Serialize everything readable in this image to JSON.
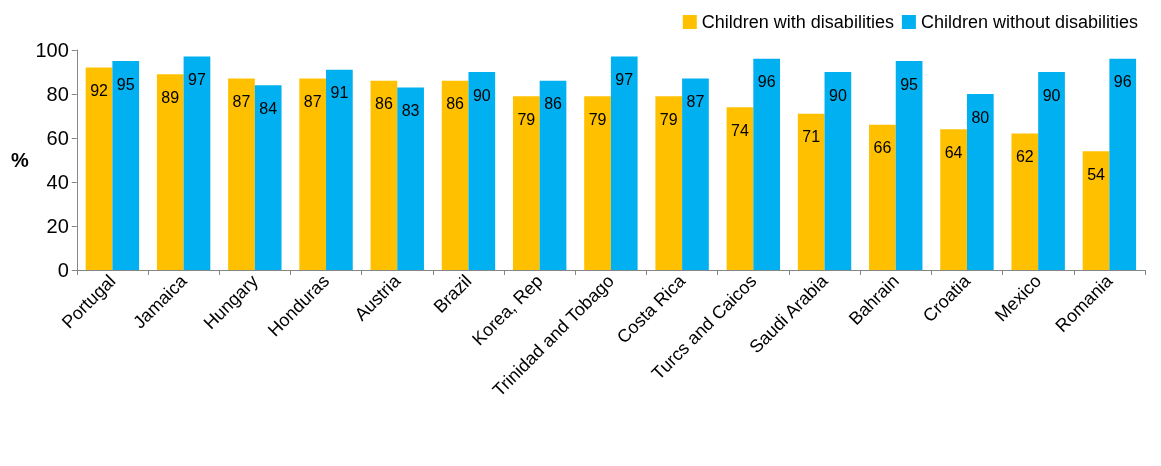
{
  "chart_data": {
    "type": "bar",
    "ylabel": "%",
    "categories": [
      "Portugal",
      "Jamaica",
      "Hungary",
      "Honduras",
      "Austria",
      "Brazil",
      "Korea, Rep",
      "Trinidad and Tobago",
      "Costa Rica",
      "Turcs and Caicos",
      "Saudi Arabia",
      "Bahrain",
      "Croatia",
      "Mexico",
      "Romania"
    ],
    "series": [
      {
        "name": "Children with disabilities",
        "color": "#ffc000",
        "values": [
          92,
          89,
          87,
          87,
          86,
          86,
          79,
          79,
          79,
          74,
          71,
          66,
          64,
          62,
          54
        ]
      },
      {
        "name": "Children without disabilities",
        "color": "#00b0f0",
        "values": [
          95,
          97,
          84,
          91,
          83,
          90,
          86,
          97,
          87,
          96,
          90,
          95,
          80,
          90,
          96
        ]
      }
    ],
    "ylim": [
      0,
      100
    ],
    "yticks": [
      0,
      20,
      40,
      60,
      80,
      100
    ],
    "grid": false,
    "legend": "top right",
    "data_labels": true
  }
}
